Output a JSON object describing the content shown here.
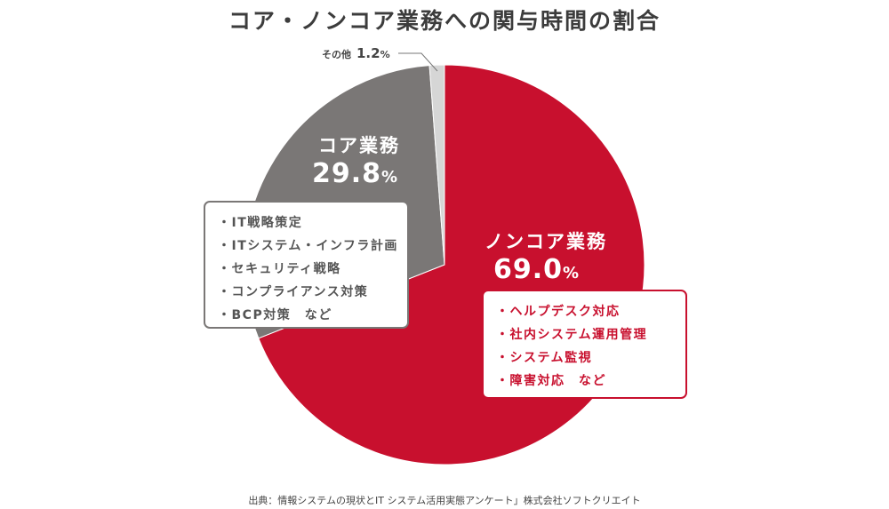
{
  "title": "コア・ノンコア業務への関与時間の割合",
  "source": "出典：情報システムの現状とIT システム活用実態アンケート」株式会社ソフトクリエイト",
  "colors": {
    "noncore": "#c8102e",
    "core": "#7a7776",
    "other": "#d6d6d6"
  },
  "chart_data": {
    "type": "pie",
    "title": "コア・ノンコア業務への関与時間の割合",
    "unit": "%",
    "slices": [
      {
        "name": "ノンコア業務",
        "value": 69.0,
        "value_label": "69.0",
        "color": "#c8102e"
      },
      {
        "name": "コア業務",
        "value": 29.8,
        "value_label": "29.8",
        "color": "#7a7776"
      },
      {
        "name": "その他",
        "value": 1.2,
        "value_label": "1.2",
        "color": "#d6d6d6"
      }
    ]
  },
  "core_examples": [
    "・IT戦略策定",
    "・ITシステム・インフラ計画",
    "・セキュリティ戦略",
    "・コンプライアンス対策",
    "・BCP対策　など"
  ],
  "noncore_examples": [
    "・ヘルプデスク対応",
    "・社内システム運用管理",
    "・システム監視",
    "・障害対応　など"
  ]
}
